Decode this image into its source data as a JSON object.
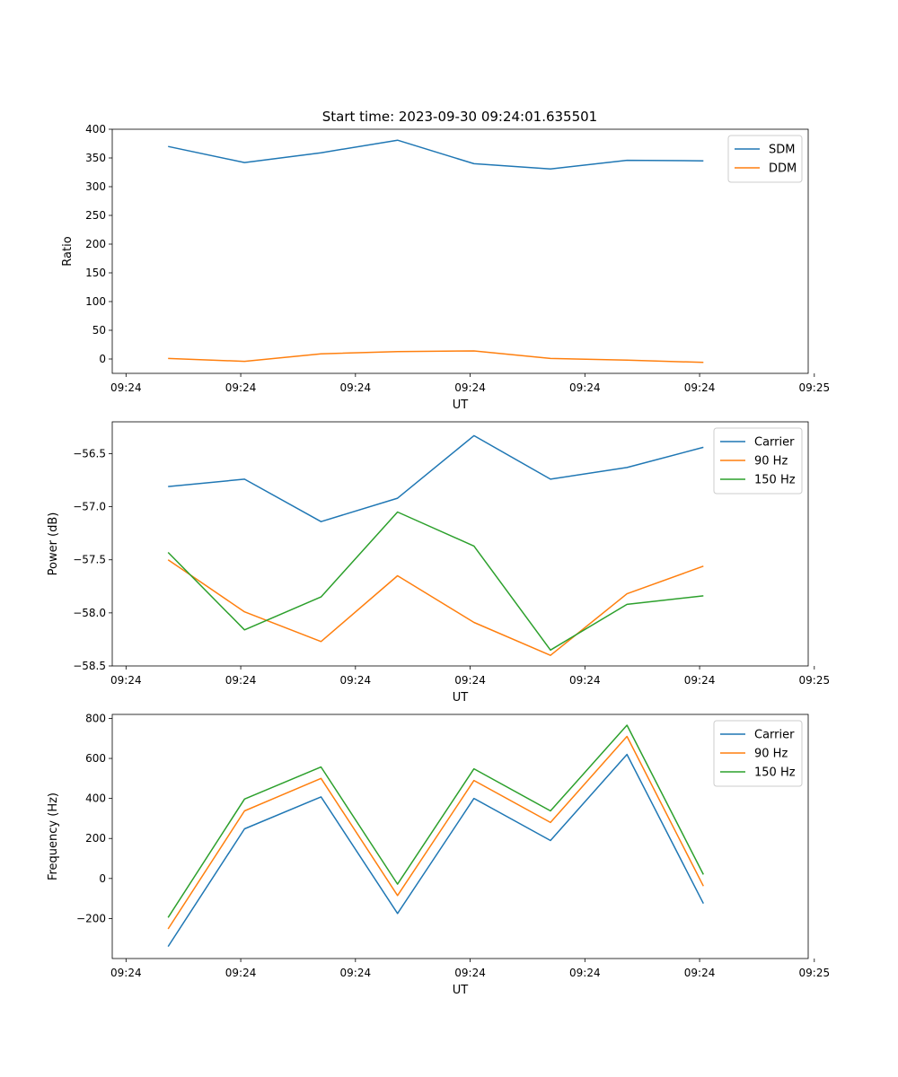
{
  "figure_title": "Start time: 2023-09-30 09:24:01.635501",
  "colors": {
    "blue": "#1f77b4",
    "orange": "#ff7f0e",
    "green": "#2ca02c"
  },
  "chart_data": [
    {
      "type": "line",
      "title": "Start time: 2023-09-30 09:24:01.635501",
      "xlabel": "UT",
      "ylabel": "Ratio",
      "x": [
        1,
        2,
        3,
        4,
        5,
        6,
        7,
        8
      ],
      "xlim": [
        0.27,
        9.37
      ],
      "xticks": [
        0.45,
        1.95,
        3.45,
        4.95,
        6.45,
        7.95,
        9.45
      ],
      "xticklabels": [
        "09:24",
        "09:24",
        "09:24",
        "09:24",
        "09:24",
        "09:24",
        "09:25"
      ],
      "ylim": [
        -25,
        400
      ],
      "yticks": [
        0,
        50,
        100,
        150,
        200,
        250,
        300,
        350,
        400
      ],
      "yticklabels": [
        "0",
        "50",
        "100",
        "150",
        "200",
        "250",
        "300",
        "350",
        "400"
      ],
      "legend_position": "top-right",
      "series": [
        {
          "name": "SDM",
          "color": "#1f77b4",
          "values": [
            370,
            342,
            359,
            381,
            340,
            331,
            346,
            345
          ]
        },
        {
          "name": "DDM",
          "color": "#ff7f0e",
          "values": [
            1,
            -4,
            9,
            13,
            14,
            1,
            -2,
            -6
          ]
        }
      ]
    },
    {
      "type": "line",
      "xlabel": "UT",
      "ylabel": "Power (dB)",
      "x": [
        1,
        2,
        3,
        4,
        5,
        6,
        7,
        8
      ],
      "xlim": [
        0.27,
        9.37
      ],
      "xticks": [
        0.45,
        1.95,
        3.45,
        4.95,
        6.45,
        7.95,
        9.45
      ],
      "xticklabels": [
        "09:24",
        "09:24",
        "09:24",
        "09:24",
        "09:24",
        "09:24",
        "09:25"
      ],
      "ylim": [
        -58.5,
        -56.2
      ],
      "yticks": [
        -58.5,
        -58.0,
        -57.5,
        -57.0,
        -56.5
      ],
      "yticklabels": [
        "−58.5",
        "−58.0",
        "−57.5",
        "−57.0",
        "−56.5"
      ],
      "legend_position": "top-right",
      "series": [
        {
          "name": "Carrier",
          "color": "#1f77b4",
          "values": [
            -56.81,
            -56.74,
            -57.14,
            -56.92,
            -56.33,
            -56.74,
            -56.63,
            -56.44
          ]
        },
        {
          "name": "90 Hz",
          "color": "#ff7f0e",
          "values": [
            -57.5,
            -57.99,
            -58.27,
            -57.65,
            -58.09,
            -58.4,
            -57.82,
            -57.56
          ]
        },
        {
          "name": "150 Hz",
          "color": "#2ca02c",
          "values": [
            -57.43,
            -58.16,
            -57.85,
            -57.05,
            -57.37,
            -58.35,
            -57.92,
            -57.84
          ]
        }
      ]
    },
    {
      "type": "line",
      "xlabel": "UT",
      "ylabel": "Frequency (Hz)",
      "x": [
        1,
        2,
        3,
        4,
        5,
        6,
        7,
        8
      ],
      "xlim": [
        0.27,
        9.37
      ],
      "xticks": [
        0.45,
        1.95,
        3.45,
        4.95,
        6.45,
        7.95,
        9.45
      ],
      "xticklabels": [
        "09:24",
        "09:24",
        "09:24",
        "09:24",
        "09:24",
        "09:24",
        "09:25"
      ],
      "ylim": [
        -400,
        820
      ],
      "yticks": [
        -200,
        0,
        200,
        400,
        600,
        800
      ],
      "yticklabels": [
        "−200",
        "0",
        "200",
        "400",
        "600",
        "800"
      ],
      "legend_position": "top-right",
      "series": [
        {
          "name": "Carrier",
          "color": "#1f77b4",
          "values": [
            -340,
            248,
            408,
            -175,
            400,
            190,
            620,
            -125
          ]
        },
        {
          "name": "90 Hz",
          "color": "#ff7f0e",
          "values": [
            -252,
            338,
            500,
            -85,
            490,
            280,
            710,
            -38
          ]
        },
        {
          "name": "150 Hz",
          "color": "#2ca02c",
          "values": [
            -195,
            397,
            557,
            -28,
            548,
            338,
            766,
            20
          ]
        }
      ]
    }
  ]
}
